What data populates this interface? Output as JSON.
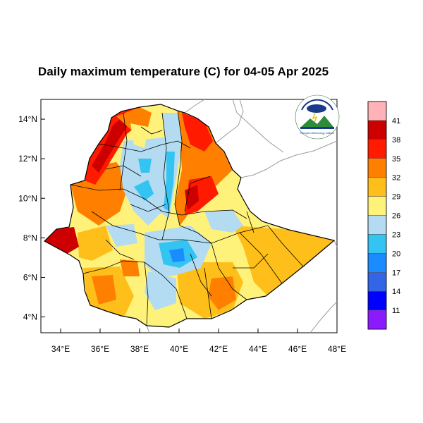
{
  "title": "Daily maximum temperature (C) for 04-05 Apr 2025",
  "chart_data": {
    "type": "heatmap",
    "title": "Daily maximum temperature (C) for 04-05 Apr 2025",
    "x_ticks": [
      "34°E",
      "36°E",
      "38°E",
      "40°E",
      "42°E",
      "44°E",
      "46°E",
      "48°E"
    ],
    "y_ticks": [
      "14°N",
      "12°N",
      "10°N",
      "8°N",
      "6°N",
      "4°N"
    ],
    "xlim": [
      33,
      48
    ],
    "ylim": [
      3.2,
      15
    ],
    "colorbar": {
      "labels": [
        "41",
        "38",
        "35",
        "32",
        "29",
        "26",
        "23",
        "20",
        "17",
        "14",
        "11"
      ],
      "colors": [
        "#ffb3b8",
        "#cc0000",
        "#ff1a00",
        "#ff8000",
        "#ffbf1a",
        "#fff27a",
        "#b3dcf2",
        "#33c4f2",
        "#1a8cff",
        "#3366e6",
        "#0000ff",
        "#8c1aff"
      ]
    },
    "logo_text": "Ethiopian Meteorology Institute"
  }
}
